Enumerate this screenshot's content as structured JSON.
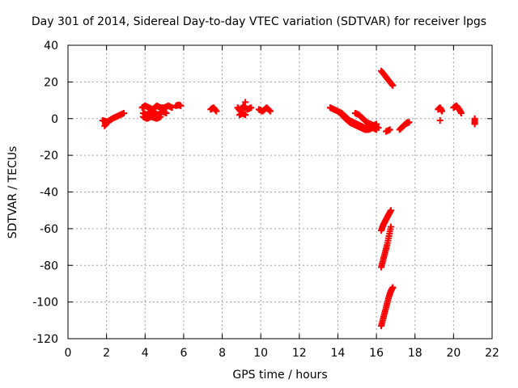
{
  "chart_data": {
    "type": "scatter",
    "title": "Day 301 of 2014, Sidereal Day-to-day VTEC variation (SDTVAR) for receiver lpgs",
    "xlabel": "GPS time / hours",
    "ylabel": "SDTVAR / TECUs",
    "xlim": [
      0,
      22
    ],
    "ylim": [
      -120,
      40
    ],
    "xticks": [
      0,
      2,
      4,
      6,
      8,
      10,
      12,
      14,
      16,
      18,
      20,
      22
    ],
    "yticks": [
      -120,
      -100,
      -80,
      -60,
      -40,
      -20,
      0,
      20,
      40
    ],
    "grid": true,
    "marker": "plus",
    "series_color": "#ff0000",
    "segments": [
      {
        "x": [
          1.9,
          2.0,
          2.15,
          2.3,
          2.5,
          2.7,
          2.9
        ],
        "y": [
          -4,
          -2,
          -1,
          0,
          1,
          2,
          3
        ]
      },
      {
        "x": [
          1.8,
          1.95,
          2.1
        ],
        "y": [
          -1,
          -1.5,
          -2
        ]
      },
      {
        "x": [
          3.85,
          4.0,
          4.2,
          4.4,
          4.6,
          4.8,
          5.0,
          5.2,
          5.4
        ],
        "y": [
          6,
          7,
          6,
          5,
          7,
          6,
          6,
          7,
          6
        ]
      },
      {
        "x": [
          3.9,
          4.1,
          4.3,
          4.5,
          4.7,
          4.9,
          5.1
        ],
        "y": [
          3,
          2,
          4,
          3,
          2,
          4,
          3
        ]
      },
      {
        "x": [
          3.9,
          4.1,
          4.3,
          4.6,
          4.8
        ],
        "y": [
          1,
          0,
          1,
          0,
          1
        ]
      },
      {
        "x": [
          5.6,
          5.75,
          5.85
        ],
        "y": [
          7,
          7.5,
          7
        ]
      },
      {
        "x": [
          7.4,
          7.55,
          7.7
        ],
        "y": [
          5,
          6,
          4
        ]
      },
      {
        "x": [
          8.8,
          8.95,
          9.1,
          9.3,
          9.5
        ],
        "y": [
          6,
          4,
          7,
          5,
          6
        ]
      },
      {
        "x": [
          8.9,
          9.05,
          9.2
        ],
        "y": [
          2,
          3,
          2
        ]
      },
      {
        "x": [
          9.2
        ],
        "y": [
          9
        ]
      },
      {
        "x": [
          9.9,
          10.1,
          10.3,
          10.5
        ],
        "y": [
          5,
          4,
          6,
          4
        ]
      },
      {
        "x": [
          13.6,
          13.8,
          14.0,
          14.2,
          14.4,
          14.6,
          14.8,
          15.0,
          15.2,
          15.4,
          15.6,
          15.8,
          16.0
        ],
        "y": [
          6,
          5,
          4,
          3,
          1,
          -1,
          -2,
          -3,
          -4,
          -5,
          -5,
          -4,
          -3
        ]
      },
      {
        "x": [
          14.2,
          14.4,
          14.6,
          14.8,
          15.0,
          15.2,
          15.4,
          15.6,
          15.8,
          16.0
        ],
        "y": [
          2,
          0,
          -2,
          -3,
          -4,
          -5,
          -6,
          -6,
          -5,
          -6
        ]
      },
      {
        "x": [
          14.9,
          15.1,
          15.3,
          15.5,
          15.7,
          15.9,
          16.1
        ],
        "y": [
          3,
          2,
          0,
          -2,
          -3,
          -4,
          -5
        ]
      },
      {
        "x": [
          16.5,
          16.7
        ],
        "y": [
          -7,
          -6
        ]
      },
      {
        "x": [
          16.25,
          16.4,
          16.55,
          16.7,
          16.85
        ],
        "y": [
          26,
          24,
          22,
          20,
          18
        ]
      },
      {
        "x": [
          17.2,
          17.4,
          17.6
        ],
        "y": [
          -6,
          -4,
          -2
        ]
      },
      {
        "x": [
          17.3,
          17.5,
          17.7
        ],
        "y": [
          -5,
          -3,
          -2
        ]
      },
      {
        "x": [
          16.25,
          16.35,
          16.45,
          16.55,
          16.65,
          16.75
        ],
        "y": [
          -61,
          -58,
          -56,
          -54,
          -52,
          -50
        ]
      },
      {
        "x": [
          16.25,
          16.35,
          16.45,
          16.55,
          16.65,
          16.75
        ],
        "y": [
          -81,
          -77,
          -73,
          -69,
          -64,
          -59
        ]
      },
      {
        "x": [
          16.25,
          16.35,
          16.45,
          16.55,
          16.65,
          16.75,
          16.85
        ],
        "y": [
          -113,
          -109,
          -105,
          -101,
          -97,
          -94,
          -92
        ]
      },
      {
        "x": [
          19.2,
          19.3,
          19.4
        ],
        "y": [
          5,
          6,
          4
        ]
      },
      {
        "x": [
          19.3
        ],
        "y": [
          -1
        ]
      },
      {
        "x": [
          20.0,
          20.15,
          20.3,
          20.4
        ],
        "y": [
          6,
          7,
          5,
          3
        ]
      },
      {
        "x": [
          21.1,
          21.1
        ],
        "y": [
          -3,
          0
        ]
      }
    ]
  }
}
